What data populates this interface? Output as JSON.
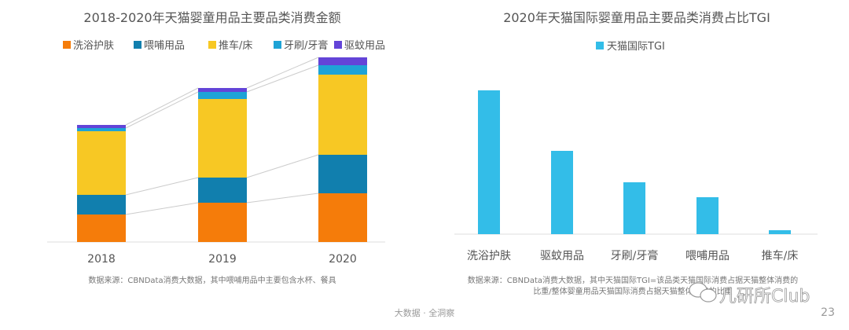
{
  "chart_data": [
    {
      "type": "bar",
      "stacked": true,
      "title": "2018-2020年天猫婴童用品主要品类消费金额",
      "categories": [
        "2018",
        "2019",
        "2020"
      ],
      "series": [
        {
          "name": "洗浴护肤",
          "color": "#f57c0a",
          "values": [
            35,
            50,
            62
          ]
        },
        {
          "name": "喂哺用品",
          "color": "#117fae",
          "values": [
            25,
            32,
            49
          ]
        },
        {
          "name": "推车/床",
          "color": "#f7c824",
          "values": [
            81,
            100,
            102
          ]
        },
        {
          "name": "牙刷/牙膏",
          "color": "#1ea3d6",
          "values": [
            4,
            9,
            12
          ]
        },
        {
          "name": "驱蚊用品",
          "color": "#6344d8",
          "values": [
            4,
            5,
            10
          ]
        }
      ],
      "ylim": [
        0,
        250
      ],
      "y_axis_shown": false,
      "grid": false,
      "legend": "top",
      "footnote": "数据来源：CBNData消费大数据，其中喂哺用品中主要包含水杯、餐具"
    },
    {
      "type": "bar",
      "title": "2020年天猫国际婴童用品主要品类消费占比TGI",
      "categories": [
        "洗浴护肤",
        "驱蚊用品",
        "牙刷/牙膏",
        "喂哺用品",
        "推车/床"
      ],
      "series": [
        {
          "name": "天猫国际TGI",
          "color": "#33bde8",
          "values": [
            183,
            106,
            66,
            47,
            5
          ]
        }
      ],
      "ylim": [
        0,
        200
      ],
      "y_axis_shown": false,
      "grid": false,
      "legend": "top",
      "footnote_lines": [
        "数据来源：CBNData消费大数据，其中天猫国际TGI=该品类天猫国际消费占据天猫整体消费的",
        "比重/整体婴童用品天猫国际消费占据天猫整体消费的比重"
      ]
    }
  ],
  "footer": {
    "center": "大数据 · 全洞察",
    "page_number": "23",
    "watermark": "儿研所Club"
  }
}
